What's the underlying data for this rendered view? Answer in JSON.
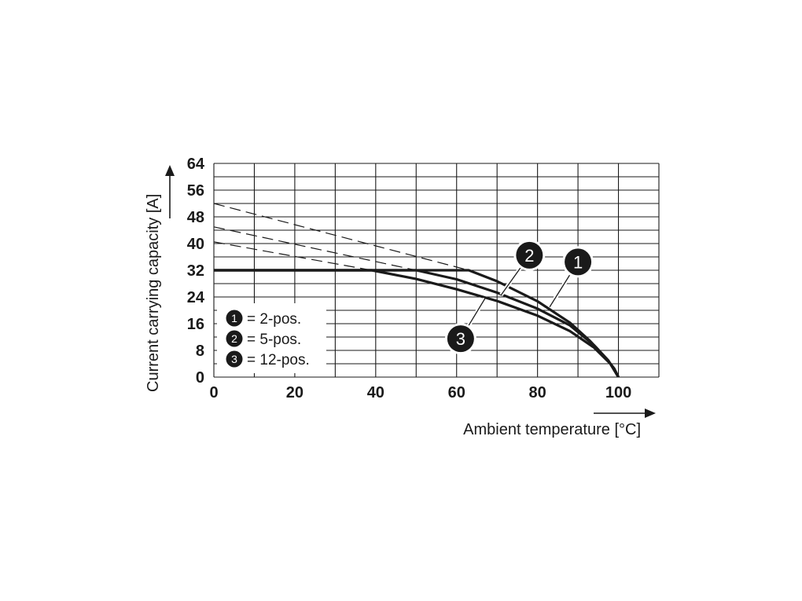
{
  "chart_data": {
    "type": "line",
    "xlabel": "Ambient temperature [°C]",
    "ylabel": "Current carrying capacity [A]",
    "xlim": [
      0,
      110
    ],
    "ylim": [
      0,
      64
    ],
    "x_ticks": [
      0,
      20,
      40,
      60,
      80,
      100
    ],
    "y_ticks": [
      0,
      8,
      16,
      24,
      32,
      40,
      48,
      56,
      64
    ],
    "x_grid_step": 10,
    "y_grid_step": 4,
    "grid": true,
    "legend_position": "bottom-left",
    "series": [
      {
        "marker": "1",
        "name": "2-pos.",
        "style": "solid",
        "points": [
          [
            0,
            32
          ],
          [
            63,
            32
          ],
          [
            70,
            28.7
          ],
          [
            80,
            22.7
          ],
          [
            88,
            16.3
          ],
          [
            93,
            10.8
          ],
          [
            97,
            5.6
          ],
          [
            99,
            2.5
          ],
          [
            100,
            0
          ]
        ]
      },
      {
        "marker": "2",
        "name": "5-pos.",
        "style": "solid",
        "points": [
          [
            0,
            32
          ],
          [
            50,
            32
          ],
          [
            60,
            29.3
          ],
          [
            70,
            25.3
          ],
          [
            80,
            20.5
          ],
          [
            88,
            15.5
          ],
          [
            94,
            9.5
          ],
          [
            97.5,
            5
          ],
          [
            100,
            0
          ]
        ]
      },
      {
        "marker": "3",
        "name": "12-pos.",
        "style": "solid",
        "points": [
          [
            0,
            32
          ],
          [
            39,
            32
          ],
          [
            50,
            29.4
          ],
          [
            60,
            26.3
          ],
          [
            70,
            22.8
          ],
          [
            80,
            18.4
          ],
          [
            88,
            13.8
          ],
          [
            94,
            8.8
          ],
          [
            98,
            4
          ],
          [
            100,
            0
          ]
        ]
      },
      {
        "name": "",
        "style": "dashed",
        "points": [
          [
            0,
            52
          ],
          [
            63,
            32
          ]
        ]
      },
      {
        "name": "",
        "style": "dashed",
        "points": [
          [
            0,
            45
          ],
          [
            50,
            32
          ]
        ]
      },
      {
        "name": "",
        "style": "dashed",
        "points": [
          [
            0,
            40.5
          ],
          [
            39,
            32
          ]
        ]
      }
    ],
    "annotations": [
      {
        "label": "1",
        "x": 90,
        "y": 34.5,
        "points_to": [
          83,
          21
        ]
      },
      {
        "label": "2",
        "x": 78,
        "y": 36.5,
        "points_to": [
          71,
          24.6
        ]
      },
      {
        "label": "3",
        "x": 61,
        "y": 11.5,
        "points_to": [
          67,
          23.5
        ]
      }
    ],
    "legend": [
      {
        "marker": "1",
        "text": "= 2-pos."
      },
      {
        "marker": "2",
        "text": "= 5-pos."
      },
      {
        "marker": "3",
        "text": "= 12-pos."
      }
    ],
    "colors": {
      "line": "#1a1a1a",
      "grid": "#1a1a1a",
      "badge": "#1a1a1a"
    }
  }
}
